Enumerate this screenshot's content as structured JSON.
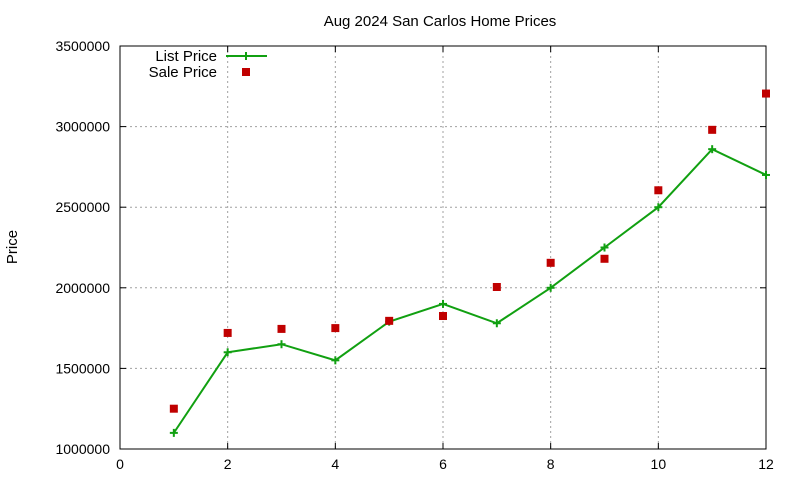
{
  "chart_data": {
    "type": "line",
    "title": "Aug 2024 San Carlos Home Prices",
    "xlabel": "",
    "ylabel": "Price",
    "xlim": [
      0,
      12
    ],
    "ylim": [
      1000000,
      3500000
    ],
    "xticks": [
      0,
      2,
      4,
      6,
      8,
      10,
      12
    ],
    "yticks": [
      1000000,
      1500000,
      2000000,
      2500000,
      3000000,
      3500000
    ],
    "xtick_labels": [
      "0",
      "2",
      "4",
      "6",
      "8",
      "10",
      "12"
    ],
    "ytick_labels": [
      "1000000",
      "1500000",
      "2000000",
      "2500000",
      "3000000",
      "3500000"
    ],
    "grid": true,
    "legend_position": "top-left",
    "series": [
      {
        "name": "List Price",
        "style": "line+cross",
        "color": "#11a011",
        "x": [
          1,
          2,
          3,
          4,
          5,
          6,
          7,
          8,
          9,
          10,
          11,
          12
        ],
        "y": [
          1100000,
          1600000,
          1650000,
          1550000,
          1790000,
          1900000,
          1780000,
          2000000,
          2250000,
          2500000,
          2860000,
          2700000
        ]
      },
      {
        "name": "Sale Price",
        "style": "square",
        "color": "#c00000",
        "x": [
          1,
          2,
          3,
          4,
          5,
          6,
          7,
          8,
          9,
          10,
          11,
          12
        ],
        "y": [
          1250000,
          1720000,
          1745000,
          1750000,
          1795000,
          1825000,
          2005000,
          2155000,
          2180000,
          2605000,
          2980000,
          3205000
        ]
      }
    ]
  }
}
